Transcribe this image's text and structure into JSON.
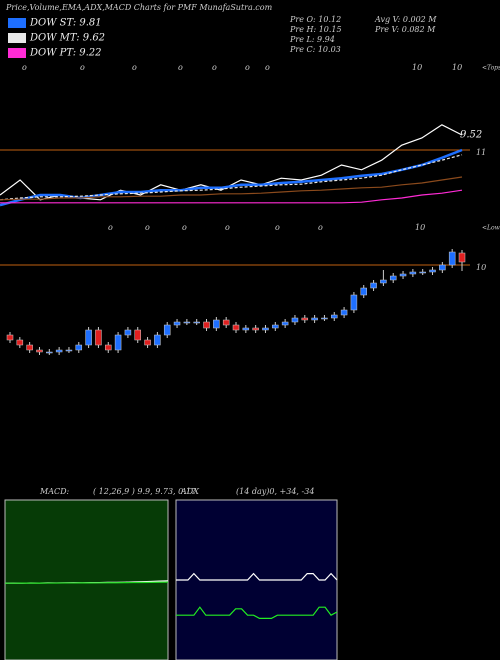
{
  "stats": [
    "Pre  O: 10.12",
    "Pre  H: 10.15",
    "Pre  L: 9.94",
    "Pre  C: 10.03",
    "Avg V: 0.002  M",
    "Pre  V: 0.082  M"
  ],
  "top_markers": {
    "labels": [
      "o",
      "o",
      "o",
      "o",
      "o",
      "o",
      "o",
      "10",
      "10"
    ],
    "note": "<Tops"
  },
  "low_markers": {
    "labels": [
      "o",
      "o",
      "o",
      "o",
      "o",
      "o",
      "10"
    ],
    "note": "<Lows"
  },
  "chart_data": [
    {
      "type": "line",
      "title": "Price,Volume,EMA,ADX,MACD Charts for PMF MunafaSutra.com",
      "ylim": [
        9.75,
        12.5
      ],
      "yticks": [
        11
      ],
      "annotations": [
        "9.52"
      ],
      "series": [
        {
          "color": "#ffffff",
          "values": [
            10.25,
            10.5,
            10.17,
            10.25,
            10.2,
            10.17,
            10.33,
            10.25,
            10.42,
            10.33,
            10.42,
            10.33,
            10.5,
            10.42,
            10.53,
            10.5,
            10.58,
            10.75,
            10.67,
            10.83,
            11.08,
            11.2,
            11.42,
            11.25
          ]
        },
        {
          "name": "DOW ST: 9.81",
          "color": "#1e6fff",
          "values": [
            10.08,
            10.17,
            10.25,
            10.25,
            10.2,
            10.25,
            10.3,
            10.3,
            10.33,
            10.33,
            10.37,
            10.37,
            10.42,
            10.42,
            10.45,
            10.47,
            10.5,
            10.53,
            10.57,
            10.6,
            10.67,
            10.75,
            10.87,
            11.0
          ]
        },
        {
          "name": "DOW MT: 9.62",
          "color": "#e8e8e8",
          "values": [
            10.17,
            10.2,
            10.22,
            10.22,
            10.23,
            10.25,
            10.27,
            10.28,
            10.3,
            10.32,
            10.33,
            10.35,
            10.38,
            10.4,
            10.42,
            10.43,
            10.47,
            10.5,
            10.53,
            10.58,
            10.67,
            10.75,
            10.83,
            10.92
          ]
        },
        {
          "color": "#8b4a1c",
          "values": [
            10.17,
            10.18,
            10.18,
            10.2,
            10.2,
            10.22,
            10.22,
            10.23,
            10.23,
            10.25,
            10.25,
            10.27,
            10.27,
            10.28,
            10.3,
            10.32,
            10.33,
            10.35,
            10.37,
            10.38,
            10.42,
            10.45,
            10.5,
            10.55
          ]
        },
        {
          "name": "DOW PT: 9.22",
          "color": "#ff2bd6",
          "values": [
            10.12,
            10.12,
            10.12,
            10.12,
            10.12,
            10.12,
            10.12,
            10.12,
            10.12,
            10.12,
            10.12,
            10.12,
            10.12,
            10.12,
            10.12,
            10.12,
            10.12,
            10.12,
            10.13,
            10.17,
            10.2,
            10.25,
            10.28,
            10.33
          ]
        }
      ]
    },
    {
      "type": "candlestick",
      "ylim": [
        8.8,
        10.3
      ],
      "yticks": [
        10
      ],
      "up_color": "#1e6fff",
      "down_color": "#e02020",
      "open": [
        9.3,
        9.25,
        9.2,
        9.15,
        9.13,
        9.13,
        9.15,
        9.15,
        9.2,
        9.35,
        9.2,
        9.15,
        9.3,
        9.35,
        9.25,
        9.2,
        9.3,
        9.4,
        9.43,
        9.43,
        9.43,
        9.37,
        9.45,
        9.4,
        9.35,
        9.37,
        9.35,
        9.37,
        9.4,
        9.43,
        9.47,
        9.45,
        9.47,
        9.47,
        9.5,
        9.55,
        9.7,
        9.77,
        9.82,
        9.85,
        9.89,
        9.91,
        9.93,
        9.93,
        9.95,
        10.0,
        10.12
      ],
      "high": [
        9.33,
        9.28,
        9.23,
        9.18,
        9.16,
        9.18,
        9.18,
        9.23,
        9.38,
        9.38,
        9.23,
        9.33,
        9.38,
        9.38,
        9.28,
        9.33,
        9.43,
        9.46,
        9.46,
        9.46,
        9.46,
        9.48,
        9.48,
        9.43,
        9.4,
        9.4,
        9.4,
        9.43,
        9.46,
        9.5,
        9.5,
        9.5,
        9.5,
        9.53,
        9.58,
        9.73,
        9.8,
        9.85,
        9.95,
        9.92,
        9.94,
        9.96,
        9.96,
        9.98,
        10.03,
        10.16,
        10.15
      ],
      "low": [
        9.22,
        9.17,
        9.12,
        9.1,
        9.1,
        9.1,
        9.12,
        9.12,
        9.17,
        9.17,
        9.12,
        9.12,
        9.27,
        9.22,
        9.17,
        9.17,
        9.27,
        9.37,
        9.4,
        9.4,
        9.34,
        9.34,
        9.37,
        9.32,
        9.32,
        9.32,
        9.32,
        9.34,
        9.37,
        9.4,
        9.42,
        9.42,
        9.44,
        9.44,
        9.47,
        9.52,
        9.67,
        9.74,
        9.79,
        9.82,
        9.86,
        9.88,
        9.9,
        9.9,
        9.92,
        9.97,
        9.94
      ],
      "close": [
        9.25,
        9.2,
        9.15,
        9.13,
        9.13,
        9.15,
        9.15,
        9.2,
        9.35,
        9.2,
        9.15,
        9.3,
        9.35,
        9.25,
        9.2,
        9.3,
        9.4,
        9.43,
        9.43,
        9.43,
        9.37,
        9.45,
        9.4,
        9.35,
        9.37,
        9.35,
        9.37,
        9.4,
        9.43,
        9.47,
        9.45,
        9.47,
        9.47,
        9.5,
        9.55,
        9.7,
        9.77,
        9.82,
        9.85,
        9.89,
        9.91,
        9.93,
        9.93,
        9.95,
        10.0,
        10.13,
        10.03
      ]
    },
    {
      "type": "line",
      "title": "MACD:",
      "subtitle": "( 12,26,9 ) 9.9, 9.73, 0.17",
      "ylim": [
        0,
        20
      ],
      "background": "#063b06",
      "series": [
        {
          "color": "#ffffff",
          "values": [
            9.6,
            9.62,
            9.6,
            9.63,
            9.62,
            9.64,
            9.63,
            9.65,
            9.66,
            9.65,
            9.67,
            9.68,
            9.7,
            9.7,
            9.72,
            9.75,
            9.78,
            9.82,
            9.86,
            9.9
          ]
        },
        {
          "color": "#22dd22",
          "values": [
            9.6,
            9.6,
            9.61,
            9.61,
            9.61,
            9.62,
            9.62,
            9.63,
            9.63,
            9.64,
            9.64,
            9.65,
            9.66,
            9.66,
            9.67,
            9.68,
            9.69,
            9.7,
            9.72,
            9.73
          ]
        }
      ]
    },
    {
      "type": "line",
      "title": "ADX",
      "subtitle": "(14 day)0, +34, -34",
      "ylim": [
        0,
        100
      ],
      "background": "#000033",
      "series": [
        {
          "color": "#ffffff",
          "values": [
            50,
            50,
            50,
            54,
            50,
            50,
            50,
            50,
            50,
            50,
            50,
            50,
            50,
            54,
            50,
            50,
            50,
            50,
            50,
            50,
            50,
            50,
            54,
            54,
            50,
            50,
            54,
            50
          ]
        },
        {
          "color": "#22ee22",
          "values": [
            28,
            28,
            28,
            28,
            33,
            28,
            28,
            28,
            28,
            28,
            32,
            32,
            28,
            28,
            26,
            26,
            26,
            28,
            28,
            28,
            28,
            28,
            28,
            28,
            33,
            33,
            28,
            30
          ]
        }
      ]
    }
  ]
}
